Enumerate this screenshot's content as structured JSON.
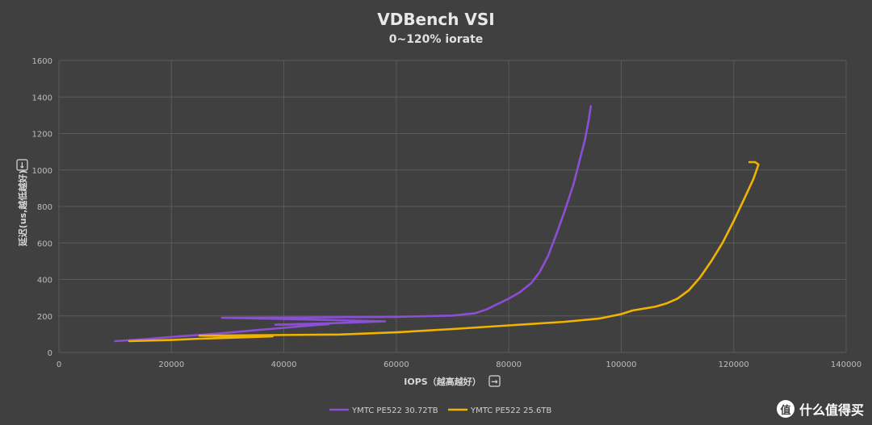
{
  "chart_data": {
    "type": "line",
    "title": "VDBench VSI",
    "subtitle": "0~120% iorate",
    "xlabel": "IOPS（越高越好）",
    "xlabel_arrow": "→",
    "ylabel": "延迟(us,越低越好)",
    "ylabel_arrow": "↓",
    "xlim": [
      0,
      140000
    ],
    "ylim": [
      0,
      1600
    ],
    "x_ticks": [
      0,
      20000,
      40000,
      60000,
      80000,
      100000,
      120000,
      140000
    ],
    "y_ticks": [
      0,
      200,
      400,
      600,
      800,
      1000,
      1200,
      1400,
      1600
    ],
    "grid": true,
    "legend_position": "bottom",
    "series": [
      {
        "name": "YMTC PE522 30.72TB",
        "color": "#8b4fd4",
        "points": [
          [
            10000,
            62
          ],
          [
            15000,
            72
          ],
          [
            20000,
            85
          ],
          [
            25000,
            96
          ],
          [
            30000,
            108
          ],
          [
            35000,
            122
          ],
          [
            40000,
            135
          ],
          [
            45000,
            148
          ],
          [
            48000,
            155
          ],
          [
            38500,
            152
          ],
          [
            48500,
            160
          ],
          [
            58000,
            170
          ],
          [
            45000,
            180
          ],
          [
            29000,
            190
          ],
          [
            45000,
            192
          ],
          [
            60000,
            195
          ],
          [
            70000,
            202
          ],
          [
            74000,
            215
          ],
          [
            76000,
            235
          ],
          [
            78000,
            265
          ],
          [
            80000,
            295
          ],
          [
            82000,
            330
          ],
          [
            84000,
            380
          ],
          [
            85500,
            440
          ],
          [
            87000,
            530
          ],
          [
            88500,
            650
          ],
          [
            90000,
            780
          ],
          [
            91500,
            920
          ],
          [
            92500,
            1040
          ],
          [
            93500,
            1160
          ],
          [
            94200,
            1270
          ],
          [
            94600,
            1350
          ]
        ]
      },
      {
        "name": "YMTC PE522 25.6TB",
        "color": "#f0b400",
        "points": [
          [
            12500,
            62
          ],
          [
            20000,
            68
          ],
          [
            25000,
            75
          ],
          [
            30000,
            80
          ],
          [
            38000,
            88
          ],
          [
            25000,
            92
          ],
          [
            38000,
            95
          ],
          [
            50000,
            98
          ],
          [
            60000,
            110
          ],
          [
            70000,
            128
          ],
          [
            80000,
            148
          ],
          [
            90000,
            168
          ],
          [
            96000,
            185
          ],
          [
            100000,
            210
          ],
          [
            102000,
            230
          ],
          [
            106000,
            250
          ],
          [
            108000,
            268
          ],
          [
            110000,
            295
          ],
          [
            112000,
            340
          ],
          [
            114000,
            410
          ],
          [
            116000,
            500
          ],
          [
            118000,
            600
          ],
          [
            120000,
            720
          ],
          [
            122000,
            850
          ],
          [
            123500,
            950
          ],
          [
            124400,
            1030
          ],
          [
            123800,
            1043
          ],
          [
            122800,
            1043
          ]
        ]
      }
    ]
  },
  "watermark": {
    "icon_glyph": "值",
    "text": "什么值得买"
  }
}
